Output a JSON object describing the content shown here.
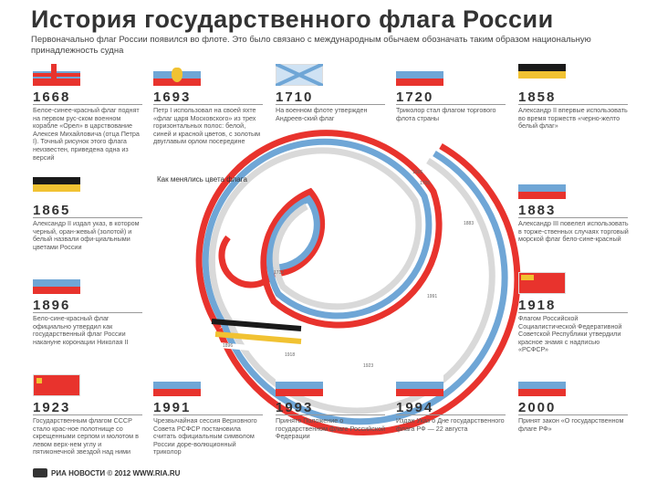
{
  "title": "История государственного флага России",
  "subtitle": "Первоначально флаг России появился во флоте. Это было связано с международным обычаем обозначать таким образом национальную принадлежность судна",
  "spiral_caption": "Как менялись цвета флага",
  "spiral_ticks": [
    "1696",
    "1705",
    "1712",
    "1883",
    "1896",
    "1918",
    "1923",
    "1991"
  ],
  "footer": "РИА НОВОСТИ © 2012 WWW.RIA.RU",
  "colors": {
    "white": "#ffffff",
    "blue": "#6fa6d6",
    "red": "#e8332d",
    "black": "#1a1a1a",
    "yellow": "#f1c232",
    "gray": "#d9d9d9"
  },
  "top_row": [
    {
      "year": "1668",
      "text": "Белое-синее-красный флаг поднят на первом рус-ском военном корабле «Орел» в царствование Алексея Михайловича (отца Петра I). Точный рисунок этого флага неизвестен, приведена одна из версий"
    },
    {
      "year": "1693",
      "text": "Петр I использовал на своей яхте «флаг царя Московского» из трех горизонтальных полос: белой, синей и красной цветов, с золотым двуглавым орлом посередине"
    },
    {
      "year": "1710",
      "text": "На военном флоте утвержден Андреев-ский флаг"
    },
    {
      "year": "1720",
      "text": "Триколор стал флагом торгового флота страны"
    },
    {
      "year": "1858",
      "text": "Александр II впервые использовать во время торжеств «черно-желто белый флаг»"
    }
  ],
  "left_col": [
    {
      "year": "1865",
      "text": "Александр II издал указ, в котором черный, оран-жевый (золотой) и белый назвали офи-циальными цветами России"
    },
    {
      "year": "1896",
      "text": "Бело-сине-красный флаг официально утвердил как государственный флаг России накануне коронации Николая II"
    }
  ],
  "right_col": [
    {
      "year": "1883",
      "text": "Александр III повелел использовать в торже-ственных случаях торговый морской флаг бело-сине-красный"
    },
    {
      "year": "1918",
      "text": "Флагом Российской Социалистической Федеративной Советской Республики утвердили красное знамя с надписью «РСФСР»"
    }
  ],
  "bottom_row": [
    {
      "year": "1923",
      "text": "Государственным флагом СССР стало крас-ное полотнище со скрещенными серпом и молотом в левом верх-нем углу и пятиконечной звездой над ними"
    },
    {
      "year": "1991",
      "text": "Чрезвычайная сессия Верховного Совета РСФСР постановила считать официальным символом России доре-волюционный триколор"
    },
    {
      "year": "1993",
      "text": "Принято Положение о государственном флаге Российской Федерации"
    },
    {
      "year": "1994",
      "text": "Издан Указ о Дне государственного флага РФ — 22 августа"
    },
    {
      "year": "2000",
      "text": "Принят закон «О государственном флаге РФ»"
    }
  ]
}
